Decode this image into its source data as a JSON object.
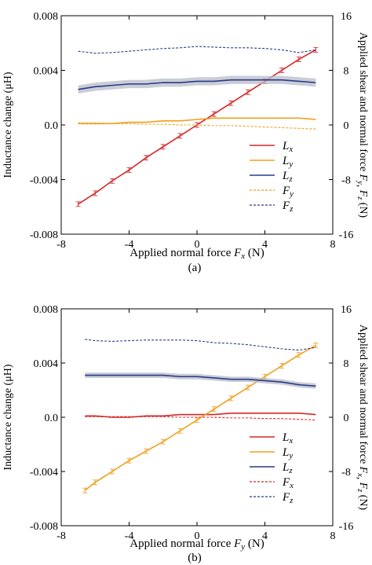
{
  "colors": {
    "Lx": "#d62728",
    "Ly": "#f0a020",
    "Lz": "#2a3a8a",
    "Fy": "#f0a020",
    "Fz": "#2a3a8a",
    "Fx": "#d62728",
    "band": "#b8bcc8",
    "axis": "#000000"
  },
  "chart_data": [
    {
      "type": "line",
      "panel_label": "(a)",
      "xlabel_prefix": "Applied normal force ",
      "xlabel_var": "F",
      "xlabel_sub": "x",
      "xlabel_suffix": " (N)",
      "ylabel": "Inductance change (μH)",
      "y2label_prefix": "Applied shear and normal force ",
      "y2label_vars": [
        [
          "F",
          "y"
        ],
        [
          "F",
          "z"
        ]
      ],
      "y2label_suffix": " (N)",
      "xlim": [
        -8,
        8
      ],
      "ylim": [
        -0.008,
        0.008
      ],
      "y2lim": [
        -16,
        16
      ],
      "xticks": [
        "-8",
        "-4",
        "0",
        "4",
        "8"
      ],
      "yticks": [
        "-0.008",
        "-0.004",
        "0.0",
        "0.004",
        "0.008"
      ],
      "y2ticks": [
        "-16",
        "-8",
        "0",
        "8",
        "16"
      ],
      "legend_position": "bottom-right",
      "series": [
        {
          "name": "L",
          "sub": "x",
          "key": "Lx",
          "axis": "left",
          "style": "solid-errorbars",
          "x": [
            -7,
            -6,
            -5,
            -4,
            -3,
            -2,
            -1,
            0,
            1,
            2,
            3,
            4,
            5,
            6,
            7
          ],
          "y": [
            -0.0058,
            -0.005,
            -0.0041,
            -0.0033,
            -0.0024,
            -0.0016,
            -0.0008,
            0.0,
            0.0008,
            0.0016,
            0.0024,
            0.0032,
            0.004,
            0.0048,
            0.0055
          ]
        },
        {
          "name": "L",
          "sub": "y",
          "key": "Ly",
          "axis": "left",
          "style": "solid",
          "x": [
            -7,
            -6,
            -5,
            -4,
            -3,
            -2,
            -1,
            0,
            1,
            2,
            3,
            4,
            5,
            6,
            7
          ],
          "y": [
            0.0001,
            0.0001,
            0.0001,
            0.0002,
            0.0002,
            0.0003,
            0.0003,
            0.0004,
            0.0005,
            0.0005,
            0.0005,
            0.0005,
            0.0005,
            0.0005,
            0.0004
          ]
        },
        {
          "name": "L",
          "sub": "z",
          "key": "Lz",
          "axis": "left",
          "style": "solid-band",
          "x": [
            -7,
            -6,
            -5,
            -4,
            -3,
            -2,
            -1,
            0,
            1,
            2,
            3,
            4,
            5,
            6,
            7
          ],
          "y": [
            0.0026,
            0.0028,
            0.0029,
            0.003,
            0.003,
            0.0031,
            0.0031,
            0.0032,
            0.0032,
            0.0033,
            0.0033,
            0.0033,
            0.0033,
            0.0032,
            0.0031
          ],
          "band": 0.0003
        },
        {
          "name": "F",
          "sub": "y",
          "key": "Fy",
          "axis": "right",
          "style": "dashed",
          "x": [
            -7,
            -6,
            -5,
            -4,
            -3,
            -2,
            -1,
            0,
            1,
            2,
            3,
            4,
            5,
            6,
            7
          ],
          "y": [
            0.3,
            0.3,
            0.2,
            0.2,
            0.1,
            0.1,
            0.0,
            0.0,
            -0.1,
            -0.1,
            -0.2,
            -0.3,
            -0.4,
            -0.5,
            -0.6
          ]
        },
        {
          "name": "F",
          "sub": "z",
          "key": "Fz",
          "axis": "right",
          "style": "dashed",
          "x": [
            -7,
            -6,
            -5,
            -4,
            -3,
            -2,
            -1,
            0,
            1,
            2,
            3,
            4,
            5,
            6,
            7
          ],
          "y": [
            10.8,
            10.5,
            10.6,
            10.8,
            11.0,
            11.2,
            11.3,
            11.5,
            11.4,
            11.3,
            11.3,
            11.2,
            11.0,
            10.6,
            11.0
          ]
        }
      ]
    },
    {
      "type": "line",
      "panel_label": "(b)",
      "xlabel_prefix": "Applied normal force ",
      "xlabel_var": "F",
      "xlabel_sub": "y",
      "xlabel_suffix": " (N)",
      "ylabel": "Inductance change (μH)",
      "y2label_prefix": "Applied shear and normal force ",
      "y2label_vars": [
        [
          "F",
          "x"
        ],
        [
          "F",
          "z"
        ]
      ],
      "y2label_suffix": " (N)",
      "xlim": [
        -8,
        8
      ],
      "ylim": [
        -0.008,
        0.008
      ],
      "y2lim": [
        -16,
        16
      ],
      "xticks": [
        "-8",
        "-4",
        "0",
        "4",
        "8"
      ],
      "yticks": [
        "-0.008",
        "-0.004",
        "0.0",
        "0.004",
        "0.008"
      ],
      "y2ticks": [
        "-16",
        "-8",
        "0",
        "8",
        "16"
      ],
      "legend_position": "bottom-right",
      "series": [
        {
          "name": "L",
          "sub": "x",
          "key": "Lx",
          "axis": "left",
          "style": "solid",
          "x": [
            -6.6,
            -6,
            -5,
            -4,
            -3,
            -2,
            -1,
            0,
            1,
            2,
            3,
            4,
            5,
            6,
            7
          ],
          "y": [
            0.0001,
            0.0001,
            0.0,
            0.0,
            0.0001,
            0.0001,
            0.0002,
            0.0002,
            0.0002,
            0.0003,
            0.0003,
            0.0003,
            0.0003,
            0.0003,
            0.0002
          ]
        },
        {
          "name": "L",
          "sub": "y",
          "key": "Ly",
          "axis": "left",
          "style": "solid-errorbars",
          "x": [
            -6.6,
            -6,
            -5,
            -4,
            -3,
            -2,
            -1,
            0,
            1,
            2,
            3,
            4,
            5,
            6,
            7
          ],
          "y": [
            -0.0054,
            -0.0048,
            -0.004,
            -0.0032,
            -0.0025,
            -0.0018,
            -0.001,
            -0.0002,
            0.0006,
            0.0014,
            0.0022,
            0.003,
            0.0038,
            0.0046,
            0.0053
          ]
        },
        {
          "name": "L",
          "sub": "z",
          "key": "Lz",
          "axis": "left",
          "style": "solid-band",
          "x": [
            -6.6,
            -6,
            -5,
            -4,
            -3,
            -2,
            -1,
            0,
            1,
            2,
            3,
            4,
            5,
            6,
            7
          ],
          "y": [
            0.0031,
            0.0031,
            0.0031,
            0.0031,
            0.0031,
            0.0031,
            0.003,
            0.003,
            0.0029,
            0.0028,
            0.0028,
            0.0027,
            0.0026,
            0.0024,
            0.0023
          ],
          "band": 0.0002
        },
        {
          "name": "F",
          "sub": "x",
          "key": "Fx",
          "axis": "right",
          "style": "dashed",
          "x": [
            -6.6,
            -6,
            -5,
            -4,
            -3,
            -2,
            -1,
            0,
            1,
            2,
            3,
            4,
            5,
            6,
            7
          ],
          "y": [
            0.1,
            0.1,
            0.1,
            0.1,
            0.1,
            0.1,
            0.0,
            0.0,
            0.0,
            -0.1,
            -0.1,
            -0.2,
            -0.2,
            -0.3,
            -0.4
          ]
        },
        {
          "name": "F",
          "sub": "z",
          "key": "Fz",
          "axis": "right",
          "style": "dashed",
          "x": [
            -6.6,
            -6,
            -5,
            -4,
            -3,
            -2,
            -1,
            0,
            1,
            2,
            3,
            4,
            5,
            6,
            7
          ],
          "y": [
            11.5,
            11.3,
            11.2,
            11.3,
            11.4,
            11.4,
            11.4,
            11.3,
            11.0,
            10.9,
            10.7,
            10.4,
            10.1,
            9.9,
            10.3
          ]
        }
      ]
    }
  ]
}
